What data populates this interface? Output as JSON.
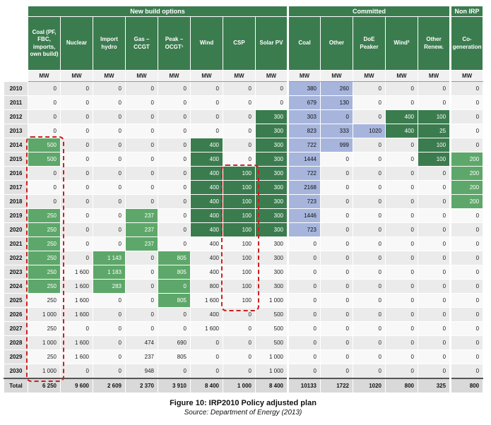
{
  "figure": {
    "caption": "Figure 10: IRP2010 Policy adjusted plan",
    "source": "Source: Department of Energy (2013)"
  },
  "table": {
    "unit_label": "MW",
    "groups": [
      {
        "label": "New build options",
        "span": 8
      },
      {
        "label": "Committed",
        "span": 5
      },
      {
        "label": "Non IRP",
        "span": 1
      }
    ],
    "columns": [
      "Coal (PF, FBC, imports, own build)",
      "Nuclear",
      "Import hydro",
      "Gas – CCGT",
      "Peak – OCGT¹",
      "Wind",
      "CSP",
      "Solar PV",
      "Coal",
      "Other",
      "DoE Peaker",
      "Wind²",
      "Other Renew.",
      "Co-generation"
    ],
    "style_legend": {
      "g": "medium-green highlight (committed new build)",
      "d": "dark-green highlight (committed renewables)",
      "b": "blue highlight (committed capacity)"
    },
    "rows": [
      {
        "year": "2010",
        "values": [
          "0",
          "0",
          "0",
          "0",
          "0",
          "0",
          "0",
          "0",
          "380",
          "260",
          "0",
          "0",
          "0",
          "0"
        ],
        "styles": [
          "",
          "",
          "",
          "",
          "",
          "",
          "",
          "",
          "b",
          "b",
          "",
          "",
          "",
          ""
        ]
      },
      {
        "year": "2011",
        "values": [
          "0",
          "0",
          "0",
          "0",
          "0",
          "0",
          "0",
          "0",
          "679",
          "130",
          "0",
          "0",
          "0",
          "0"
        ],
        "styles": [
          "",
          "",
          "",
          "",
          "",
          "",
          "",
          "",
          "b",
          "b",
          "",
          "",
          "",
          ""
        ]
      },
      {
        "year": "2012",
        "values": [
          "0",
          "0",
          "0",
          "0",
          "0",
          "0",
          "0",
          "300",
          "303",
          "0",
          "0",
          "400",
          "100",
          "0"
        ],
        "styles": [
          "",
          "",
          "",
          "",
          "",
          "",
          "",
          "d",
          "b",
          "b",
          "",
          "d",
          "d",
          ""
        ]
      },
      {
        "year": "2013",
        "values": [
          "0",
          "0",
          "0",
          "0",
          "0",
          "0",
          "0",
          "300",
          "823",
          "333",
          "1020",
          "400",
          "25",
          "0"
        ],
        "styles": [
          "",
          "",
          "",
          "",
          "",
          "",
          "",
          "d",
          "b",
          "b",
          "b",
          "d",
          "d",
          ""
        ]
      },
      {
        "year": "2014",
        "values": [
          "500",
          "0",
          "0",
          "0",
          "0",
          "400",
          "0",
          "300",
          "722",
          "999",
          "0",
          "0",
          "100",
          "0"
        ],
        "styles": [
          "g",
          "",
          "",
          "",
          "",
          "d",
          "",
          "d",
          "b",
          "b",
          "",
          "",
          "d",
          ""
        ]
      },
      {
        "year": "2015",
        "values": [
          "500",
          "0",
          "0",
          "0",
          "0",
          "400",
          "0",
          "300",
          "1444",
          "0",
          "0",
          "0",
          "100",
          "200"
        ],
        "styles": [
          "g",
          "",
          "",
          "",
          "",
          "d",
          "",
          "d",
          "b",
          "",
          "",
          "",
          "d",
          "g"
        ]
      },
      {
        "year": "2016",
        "values": [
          "0",
          "0",
          "0",
          "0",
          "0",
          "400",
          "100",
          "300",
          "722",
          "0",
          "0",
          "0",
          "0",
          "200"
        ],
        "styles": [
          "",
          "",
          "",
          "",
          "",
          "d",
          "d",
          "d",
          "b",
          "",
          "",
          "",
          "",
          "g"
        ]
      },
      {
        "year": "2017",
        "values": [
          "0",
          "0",
          "0",
          "0",
          "0",
          "400",
          "100",
          "300",
          "2168",
          "0",
          "0",
          "0",
          "0",
          "200"
        ],
        "styles": [
          "",
          "",
          "",
          "",
          "",
          "d",
          "d",
          "d",
          "b",
          "",
          "",
          "",
          "",
          "g"
        ]
      },
      {
        "year": "2018",
        "values": [
          "0",
          "0",
          "0",
          "0",
          "0",
          "400",
          "100",
          "300",
          "723",
          "0",
          "0",
          "0",
          "0",
          "200"
        ],
        "styles": [
          "",
          "",
          "",
          "",
          "",
          "d",
          "d",
          "d",
          "b",
          "",
          "",
          "",
          "",
          "g"
        ]
      },
      {
        "year": "2019",
        "values": [
          "250",
          "0",
          "0",
          "237",
          "0",
          "400",
          "100",
          "300",
          "1446",
          "0",
          "0",
          "0",
          "0",
          "0"
        ],
        "styles": [
          "g",
          "",
          "",
          "g",
          "",
          "d",
          "d",
          "d",
          "b",
          "",
          "",
          "",
          "",
          ""
        ]
      },
      {
        "year": "2020",
        "values": [
          "250",
          "0",
          "0",
          "237",
          "0",
          "400",
          "100",
          "300",
          "723",
          "0",
          "0",
          "0",
          "0",
          "0"
        ],
        "styles": [
          "g",
          "",
          "",
          "g",
          "",
          "d",
          "d",
          "d",
          "b",
          "",
          "",
          "",
          "",
          ""
        ]
      },
      {
        "year": "2021",
        "values": [
          "250",
          "0",
          "0",
          "237",
          "0",
          "400",
          "100",
          "300",
          "0",
          "0",
          "0",
          "0",
          "0",
          "0"
        ],
        "styles": [
          "g",
          "",
          "",
          "g",
          "",
          "",
          "",
          "",
          "",
          "",
          "",
          "",
          "",
          ""
        ]
      },
      {
        "year": "2022",
        "values": [
          "250",
          "0",
          "1 143",
          "0",
          "805",
          "400",
          "100",
          "300",
          "0",
          "0",
          "0",
          "0",
          "0",
          "0"
        ],
        "styles": [
          "g",
          "",
          "g",
          "",
          "g",
          "",
          "",
          "",
          "",
          "",
          "",
          "",
          "",
          ""
        ]
      },
      {
        "year": "2023",
        "values": [
          "250",
          "1 600",
          "1 183",
          "0",
          "805",
          "400",
          "100",
          "300",
          "0",
          "0",
          "0",
          "0",
          "0",
          "0"
        ],
        "styles": [
          "g",
          "",
          "g",
          "",
          "g",
          "",
          "",
          "",
          "",
          "",
          "",
          "",
          "",
          ""
        ]
      },
      {
        "year": "2024",
        "values": [
          "250",
          "1 600",
          "283",
          "0",
          "0",
          "800",
          "100",
          "300",
          "0",
          "0",
          "0",
          "0",
          "0",
          "0"
        ],
        "styles": [
          "g",
          "",
          "g",
          "",
          "g",
          "",
          "",
          "",
          "",
          "",
          "",
          "",
          "",
          ""
        ]
      },
      {
        "year": "2025",
        "values": [
          "250",
          "1 600",
          "0",
          "0",
          "805",
          "1 600",
          "100",
          "1 000",
          "0",
          "0",
          "0",
          "0",
          "0",
          "0"
        ],
        "styles": [
          "",
          "",
          "",
          "",
          "g",
          "",
          "",
          "",
          "",
          "",
          "",
          "",
          "",
          ""
        ]
      },
      {
        "year": "2026",
        "values": [
          "1 000",
          "1 600",
          "0",
          "0",
          "0",
          "400",
          "0",
          "500",
          "0",
          "0",
          "0",
          "0",
          "0",
          "0"
        ],
        "styles": [
          "",
          "",
          "",
          "",
          "",
          "",
          "",
          "",
          "",
          "",
          "",
          "",
          "",
          ""
        ]
      },
      {
        "year": "2027",
        "values": [
          "250",
          "0",
          "0",
          "0",
          "0",
          "1 600",
          "0",
          "500",
          "0",
          "0",
          "0",
          "0",
          "0",
          "0"
        ],
        "styles": [
          "",
          "",
          "",
          "",
          "",
          "",
          "",
          "",
          "",
          "",
          "",
          "",
          "",
          ""
        ]
      },
      {
        "year": "2028",
        "values": [
          "1 000",
          "1 600",
          "0",
          "474",
          "690",
          "0",
          "0",
          "500",
          "0",
          "0",
          "0",
          "0",
          "0",
          "0"
        ],
        "styles": [
          "",
          "",
          "",
          "",
          "",
          "",
          "",
          "",
          "",
          "",
          "",
          "",
          "",
          ""
        ]
      },
      {
        "year": "2029",
        "values": [
          "250",
          "1 600",
          "0",
          "237",
          "805",
          "0",
          "0",
          "1 000",
          "0",
          "0",
          "0",
          "0",
          "0",
          "0"
        ],
        "styles": [
          "",
          "",
          "",
          "",
          "",
          "",
          "",
          "",
          "",
          "",
          "",
          "",
          "",
          ""
        ]
      },
      {
        "year": "2030",
        "values": [
          "1 000",
          "0",
          "0",
          "948",
          "0",
          "0",
          "0",
          "1 000",
          "0",
          "0",
          "0",
          "0",
          "0",
          "0"
        ],
        "styles": [
          "",
          "",
          "",
          "",
          "",
          "",
          "",
          "",
          "",
          "",
          "",
          "",
          "",
          ""
        ]
      }
    ],
    "total_row": {
      "label": "Total",
      "values": [
        "6 250",
        "9 600",
        "2 609",
        "2 370",
        "3 910",
        "8 400",
        "1 000",
        "8 400",
        "10133",
        "1722",
        "1020",
        "800",
        "325",
        "800"
      ]
    },
    "annotations": [
      {
        "name": "coal-column-red-dashed-box",
        "col_index": 0,
        "from_year": "2014",
        "to_year": "2030"
      },
      {
        "name": "csp-column-red-dashed-box",
        "col_index": 6,
        "from_year": "2016",
        "to_year": "2025"
      }
    ]
  },
  "colors": {
    "header_green": "#3b7c4f",
    "cell_dark_green": "#3b7c4f",
    "cell_medium_green": "#5ea76a",
    "cell_blue": "#a7b5dd",
    "annotation_red": "#cf1d1d"
  }
}
